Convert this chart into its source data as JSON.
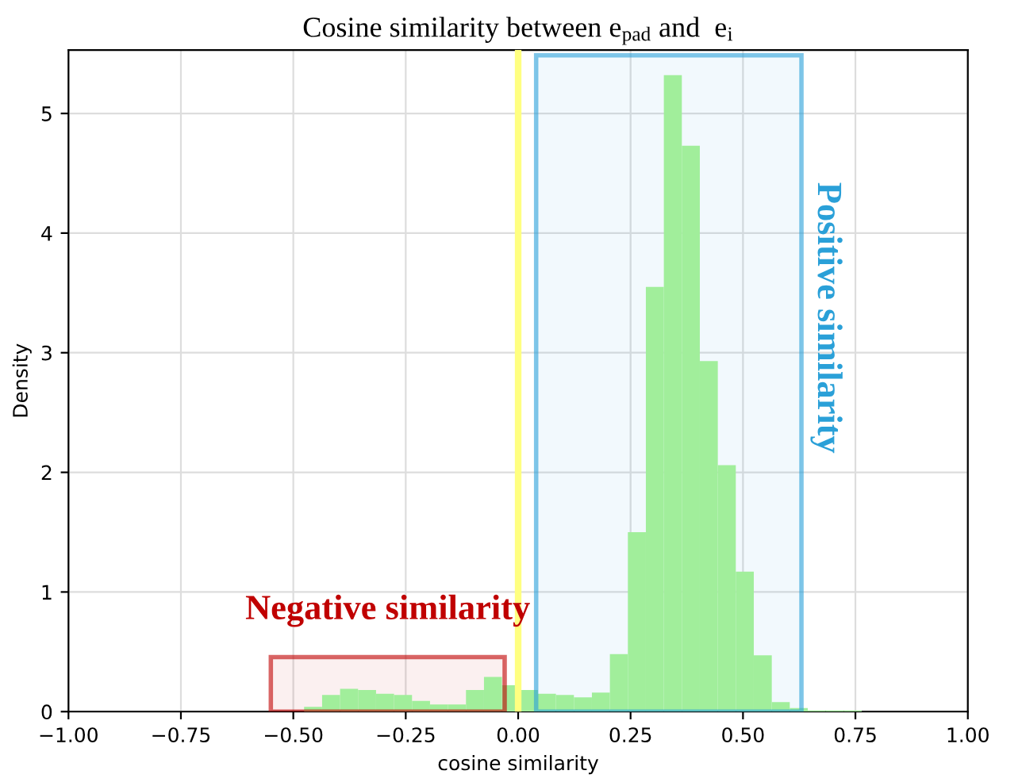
{
  "chart_data": {
    "type": "histogram",
    "title": "Cosine similarity between e$_{pad}$ and  e$_{i}$",
    "xlabel": "cosine similarity",
    "ylabel": "Density",
    "bins": [
      -0.476,
      -0.436,
      -0.396,
      -0.356,
      -0.316,
      -0.276,
      -0.236,
      -0.196,
      -0.156,
      -0.116,
      -0.076,
      -0.036,
      0.004,
      0.044,
      0.084,
      0.124,
      0.164,
      0.204,
      0.244,
      0.284,
      0.324,
      0.364,
      0.404,
      0.444,
      0.484,
      0.524,
      0.564,
      0.604,
      0.644,
      0.684,
      0.724,
      0.764
    ],
    "values": [
      0.04,
      0.14,
      0.19,
      0.18,
      0.15,
      0.14,
      0.09,
      0.06,
      0.06,
      0.18,
      0.29,
      0.22,
      0.18,
      0.15,
      0.14,
      0.12,
      0.16,
      0.48,
      1.5,
      3.55,
      5.32,
      4.73,
      2.93,
      2.06,
      1.17,
      0.47,
      0.08,
      0.03,
      0.01,
      0.01,
      0.01
    ],
    "color": "#a1ee9b",
    "xlim": [
      -1,
      1
    ],
    "ylim": [
      0,
      5.53
    ],
    "xticks": [
      {
        "value": -1,
        "label": "−1.00"
      },
      {
        "value": -0.75,
        "label": "−0.75"
      },
      {
        "value": -0.5,
        "label": "−0.50"
      },
      {
        "value": -0.25,
        "label": "−0.25"
      },
      {
        "value": 0,
        "label": "0.00"
      },
      {
        "value": 0.25,
        "label": "0.25"
      },
      {
        "value": 0.5,
        "label": "0.50"
      },
      {
        "value": 0.75,
        "label": "0.75"
      },
      {
        "value": 1,
        "label": "1.00"
      }
    ],
    "yticks": [
      0,
      1,
      2,
      3,
      4,
      5
    ],
    "ref_lines": [
      {
        "axis": "x",
        "value": 0,
        "color": "#ffff80"
      }
    ],
    "bands": [
      {
        "axis": "x",
        "from": -0.55,
        "to": -0.03,
        "label": "Negative similarity",
        "color": "#c00000"
      },
      {
        "axis": "x",
        "from": 0.04,
        "to": 0.63,
        "label": "Positive similarity",
        "color": "#2aa0d8"
      }
    ],
    "grid": true,
    "legend": false
  }
}
